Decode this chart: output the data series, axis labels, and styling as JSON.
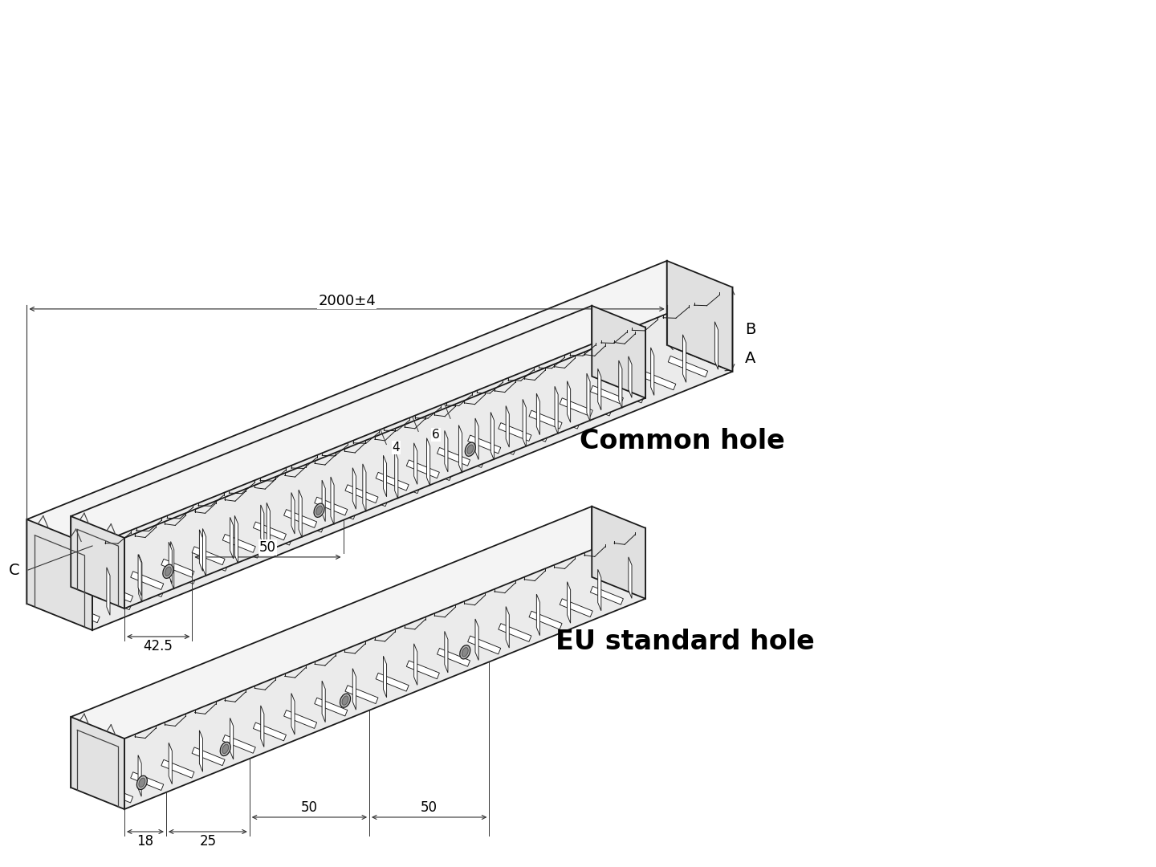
{
  "background_color": "#ffffff",
  "line_color": "#1a1a1a",
  "text_color": "#000000",
  "title1": "Common hole",
  "title2": "EU standard hole",
  "dim_2000": "2000±4",
  "dim_A": "A",
  "dim_B": "B",
  "dim_C": "C",
  "dim_4": "4",
  "dim_6": "6",
  "dim_50_common": "50",
  "dim_42_5": "42.5",
  "dim_50_eu1": "50",
  "dim_50_eu2": "50",
  "dim_25": "25",
  "dim_18": "18",
  "title_fontsize": 24,
  "dim_fontsize": 12,
  "label_fontsize": 14,
  "lw_main": 1.3,
  "lw_thin": 0.75,
  "lw_dim": 0.85,
  "duct1": {
    "ox": 115,
    "oy": 680,
    "sl": 860,
    "sd": 88,
    "sh": 105,
    "ang_l": 22,
    "ang_d": 158,
    "n_slots": 20
  },
  "duct2": {
    "ox": 155,
    "oy": 670,
    "sl": 700,
    "sd": 72,
    "sh": 88,
    "ang_l": 22,
    "ang_d": 158,
    "n_slots": 17,
    "holes": [
      0.13,
      0.42,
      0.71
    ]
  },
  "duct3": {
    "ox": 155,
    "oy": 920,
    "sl": 700,
    "sd": 72,
    "sh": 88,
    "ang_l": 22,
    "ang_d": 158,
    "n_slots": 17,
    "holes": [
      0.08,
      0.24,
      0.47,
      0.7
    ]
  }
}
